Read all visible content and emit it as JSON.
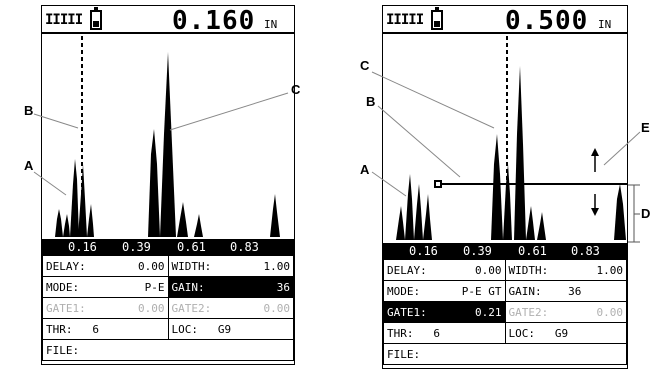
{
  "left_screen": {
    "signal_bars": "IIIII",
    "reading": "0.160",
    "unit": "IN",
    "axis_ticks": [
      "0.16",
      "0.39",
      "0.61",
      "0.83"
    ],
    "params": {
      "delay_label": "DELAY:",
      "delay_value": "0.00",
      "width_label": "WIDTH:",
      "width_value": "1.00",
      "mode_label": "MODE:",
      "mode_value": "P-E",
      "gain_label": "GAIN:",
      "gain_value": "36",
      "gate1_label": "GATE1:",
      "gate1_value": "0.00",
      "gate2_label": "GATE2:",
      "gate2_value": "0.00",
      "thr_label": "THR:",
      "thr_value": "6",
      "loc_label": "LOC:",
      "loc_value": "G9",
      "file_label": "FILE:"
    },
    "active_field": "gain"
  },
  "right_screen": {
    "signal_bars": "IIIII",
    "reading": "0.500",
    "unit": "IN",
    "axis_ticks": [
      "0.16",
      "0.39",
      "0.61",
      "0.83"
    ],
    "params": {
      "delay_label": "DELAY:",
      "delay_value": "0.00",
      "width_label": "WIDTH:",
      "width_value": "1.00",
      "mode_label": "MODE:",
      "mode_value": "P-E GT",
      "gain_label": "GAIN:",
      "gain_value": "36",
      "gate1_label": "GATE1:",
      "gate1_value": "0.21",
      "gate2_label": "GATE2:",
      "gate2_value": "0.00",
      "thr_label": "THR:",
      "thr_value": "6",
      "loc_label": "LOC:",
      "loc_value": "G9",
      "file_label": "FILE:"
    },
    "active_field": "gate1"
  },
  "callouts": {
    "left": {
      "a": "A",
      "b": "B",
      "c": "C"
    },
    "right": {
      "a": "A",
      "b": "B",
      "c": "C",
      "d": "D",
      "e": "E"
    }
  }
}
